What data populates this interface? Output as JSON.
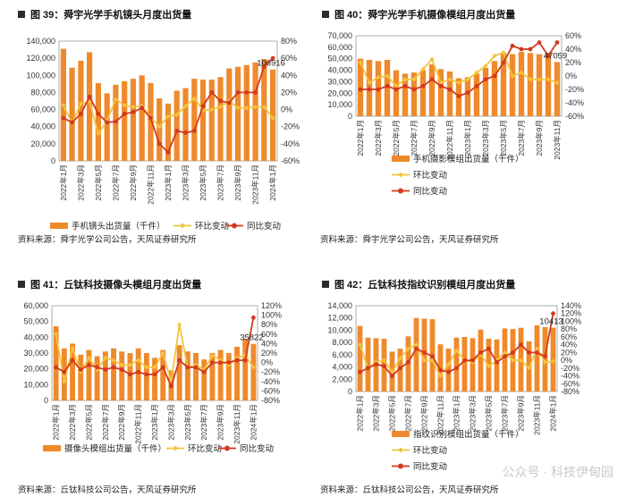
{
  "colors": {
    "bar": "#ee8a2c",
    "mom": "#f4c43c",
    "yoy": "#d33a1f",
    "frame": "#999999"
  },
  "watermark": "公众号 · 科技伊甸园",
  "x_labels": [
    "2022年1月",
    "2022年3月",
    "2022年5月",
    "2022年7月",
    "2022年9月",
    "2022年11月",
    "2023年1月",
    "2023年3月",
    "2023年5月",
    "2023年7月",
    "2023年9月",
    "2023年11月",
    "2024年1月"
  ],
  "charts": [
    {
      "title": "图 39：舜宇光学手机镜头月度出货量",
      "source": "资料来源：舜宇光学公司公告，天风证券研究所",
      "legend": [
        "手机镜头出货量（千件）",
        "环比变动",
        "同比变动"
      ],
      "legend_layout": "row",
      "annotation": "106916"
    },
    {
      "title": "图 40：舜宇光学手机摄像模组月度出货量",
      "source": "资料来源：舜宇光学公司公告，天风证券研究所",
      "legend": [
        "手机摄影模组出货量（千件）",
        "环比变动",
        "同比变动"
      ],
      "legend_layout": "column",
      "annotation": "47059"
    },
    {
      "title": "图 41：丘钛科技摄像头模组月度出货量",
      "source": "资料来源：丘钛科技公司公告，天风证券研究所",
      "legend": [
        "摄像头模组出货量（千件）",
        "环比变动",
        "同比变动"
      ],
      "legend_layout": "row",
      "annotation": "35822"
    },
    {
      "title": "图 42：丘钛科技指纹识别模组月度出货量",
      "source": "资料来源：丘钛科技公司公告，天风证券研究所",
      "legend": [
        "指纹识别模组出货量（千件）",
        "环比变动",
        "同比变动"
      ],
      "legend_layout": "column",
      "annotation": "10413"
    }
  ],
  "chart_data": [
    {
      "type": "bar",
      "title": "图 39：舜宇光学手机镜头月度出货量",
      "y_left": {
        "ylim": [
          0,
          140000
        ],
        "ticks": [
          "0",
          "20,000",
          "40,000",
          "60,000",
          "80,000",
          "100,000",
          "120,000",
          "140,000"
        ]
      },
      "y_right": {
        "ylim": [
          -60,
          80
        ],
        "ticks": [
          "-60%",
          "-40%",
          "-20%",
          "0%",
          "20%",
          "40%",
          "60%",
          "80%"
        ]
      },
      "series": [
        {
          "name": "手机镜头出货量（千件）",
          "axis": "left",
          "kind": "bar",
          "values": [
            131000,
            109000,
            117000,
            127000,
            91000,
            79000,
            89000,
            93000,
            96000,
            100000,
            91000,
            73000,
            67000,
            82000,
            85000,
            96000,
            95000,
            95000,
            98000,
            108000,
            110000,
            112000,
            115000,
            119000,
            106916
          ]
        },
        {
          "name": "环比变动",
          "axis": "right",
          "kind": "line",
          "values": [
            5,
            -16,
            7,
            9,
            -28,
            -13,
            12,
            5,
            3,
            4,
            -9,
            -20,
            -8,
            -6,
            4,
            13,
            -1,
            0,
            3,
            10,
            2,
            2,
            3,
            3,
            -10
          ]
        },
        {
          "name": "同比变动",
          "axis": "right",
          "kind": "line",
          "values": [
            -10,
            -15,
            -5,
            15,
            -5,
            -15,
            -14,
            -5,
            -3,
            2,
            -10,
            -40,
            -50,
            -25,
            -27,
            -25,
            4,
            20,
            10,
            8,
            20,
            20,
            20,
            50,
            60
          ]
        }
      ]
    },
    {
      "type": "bar",
      "title": "图 40：舜宇光学手机摄像模组月度出货量",
      "y_left": {
        "ylim": [
          0,
          70000
        ],
        "ticks": [
          "0",
          "10,000",
          "20,000",
          "30,000",
          "40,000",
          "50,000",
          "60,000",
          "70,000"
        ]
      },
      "y_right": {
        "ylim": [
          -60,
          60
        ],
        "ticks": [
          "-60%",
          "-40%",
          "-20%",
          "0%",
          "20%",
          "40%",
          "60%"
        ]
      },
      "series": [
        {
          "name": "手机摄影模组出货量（千件）",
          "axis": "left",
          "kind": "bar",
          "values": [
            50000,
            49000,
            48000,
            49000,
            40000,
            37000,
            38000,
            40000,
            45000,
            41000,
            39000,
            33000,
            34000,
            37000,
            42000,
            48000,
            55000,
            54000,
            56000,
            55000,
            54000,
            55000,
            47059
          ]
        },
        {
          "name": "环比变动",
          "axis": "right",
          "kind": "line",
          "values": [
            20,
            -10,
            -2,
            0,
            -15,
            -5,
            -5,
            10,
            25,
            -10,
            -5,
            -10,
            -5,
            5,
            15,
            30,
            35,
            0,
            5,
            -5,
            -5,
            -5,
            -10
          ]
        },
        {
          "name": "同比变动",
          "axis": "right",
          "kind": "line",
          "values": [
            -20,
            -20,
            -20,
            -15,
            -20,
            -15,
            -20,
            -15,
            -5,
            -15,
            -20,
            -30,
            -25,
            -15,
            -5,
            0,
            20,
            45,
            40,
            40,
            50,
            30,
            50
          ]
        }
      ]
    },
    {
      "type": "bar",
      "title": "图 41：丘钛科技摄像头模组月度出货量",
      "y_left": {
        "ylim": [
          0,
          60000
        ],
        "ticks": [
          "0",
          "10,000",
          "20,000",
          "30,000",
          "40,000",
          "50,000",
          "60,000"
        ]
      },
      "y_right": {
        "ylim": [
          -80,
          120
        ],
        "ticks": [
          "-80%",
          "-60%",
          "-40%",
          "-20%",
          "0%",
          "20%",
          "40%",
          "60%",
          "80%",
          "100%",
          "120%"
        ]
      },
      "series": [
        {
          "name": "摄像头模组出货量（千件）",
          "axis": "left",
          "kind": "bar",
          "values": [
            47000,
            33000,
            36000,
            29000,
            32000,
            28000,
            31000,
            33000,
            31000,
            30000,
            33000,
            30000,
            27000,
            32000,
            19000,
            35000,
            31000,
            30000,
            26000,
            30000,
            32000,
            30000,
            34000,
            39000,
            35822
          ]
        },
        {
          "name": "环比变动",
          "axis": "right",
          "kind": "line",
          "values": [
            60,
            -40,
            30,
            -20,
            10,
            -15,
            10,
            5,
            -5,
            -5,
            5,
            -10,
            -10,
            20,
            -40,
            80,
            -10,
            -5,
            -15,
            15,
            5,
            -5,
            10,
            15,
            -10
          ]
        },
        {
          "name": "同比变动",
          "axis": "right",
          "kind": "line",
          "values": [
            -10,
            -20,
            5,
            -15,
            -5,
            -10,
            -15,
            -10,
            -15,
            -25,
            -20,
            -25,
            -25,
            -10,
            -50,
            5,
            -10,
            -10,
            -20,
            0,
            0,
            0,
            5,
            5,
            95
          ]
        }
      ]
    },
    {
      "type": "bar",
      "title": "图 42：丘钛科技指纹识别模组月度出货量",
      "y_left": {
        "ylim": [
          0,
          14000
        ],
        "ticks": [
          "0",
          "2,000",
          "4,000",
          "6,000",
          "8,000",
          "10,000",
          "12,000",
          "14,000"
        ]
      },
      "y_right": {
        "ylim": [
          -80,
          140
        ],
        "ticks": [
          "-80%",
          "-60%",
          "-40%",
          "-20%",
          "0%",
          "20%",
          "40%",
          "60%",
          "80%",
          "100%",
          "120%",
          "140%"
        ]
      },
      "series": [
        {
          "name": "指纹识别模组出货量（千件）",
          "axis": "left",
          "kind": "bar",
          "values": [
            10700,
            8800,
            8700,
            8600,
            6500,
            7000,
            9000,
            12000,
            11900,
            11800,
            7700,
            7000,
            8800,
            8900,
            8700,
            10100,
            8600,
            8500,
            10300,
            10200,
            10400,
            8200,
            10800,
            10500,
            10413
          ]
        },
        {
          "name": "环比变动",
          "axis": "right",
          "kind": "line",
          "values": [
            40,
            -20,
            -5,
            0,
            -30,
            5,
            30,
            40,
            0,
            0,
            -40,
            -10,
            25,
            0,
            -5,
            15,
            -15,
            0,
            20,
            0,
            0,
            -20,
            30,
            -5,
            -2
          ]
        },
        {
          "name": "同比变动",
          "axis": "right",
          "kind": "line",
          "values": [
            -30,
            -20,
            -10,
            -15,
            -40,
            -20,
            -5,
            30,
            20,
            10,
            -25,
            -30,
            -20,
            0,
            0,
            20,
            30,
            -5,
            10,
            20,
            40,
            20,
            20,
            10,
            120
          ]
        }
      ]
    }
  ]
}
